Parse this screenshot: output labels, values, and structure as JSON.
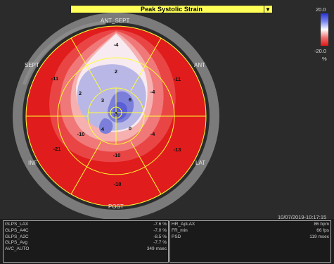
{
  "header": {
    "mode_label": "Peak Systolic Strain",
    "dropdown_arrow": "▼"
  },
  "scale": {
    "max": "20.0",
    "min": "-20.0",
    "unit": "%"
  },
  "wall_labels": {
    "ant_sept": "ANT_SEPT",
    "ant": "ANT",
    "lat": "LAT",
    "post": "POST",
    "inf": "INF",
    "sept": "SEPT"
  },
  "segments": {
    "outer_ant_sept": "-4",
    "outer_ant": "-11",
    "outer_lat": "-13",
    "outer_post": "-18",
    "outer_inf": "-21",
    "outer_sept": "-11",
    "mid_ant_sept": "2",
    "mid_ant": "-4",
    "mid_lat": "-4",
    "mid_post": "-10",
    "mid_inf": "-10",
    "mid_sept": "2",
    "apex_top": "6",
    "apex_right": "0",
    "apex_bottom": "4",
    "apex_left": "3",
    "apex_center": "3"
  },
  "timestamp": "10/07/2019-10:17:15",
  "left_panel": [
    {
      "k": "GLPS_LAX",
      "v": "-7.6 %"
    },
    {
      "k": "GLPS_A4C",
      "v": "-7.0 %"
    },
    {
      "k": "GLPS_A2C",
      "v": "-8.5 %"
    },
    {
      "k": "GLPS_Avg",
      "v": "-7.7 %"
    },
    {
      "k": "AVC_AUTO",
      "v": "349 msec"
    }
  ],
  "right_panel": [
    {
      "k": "HR_ApLAX",
      "v": "86 bpm"
    },
    {
      "k": "FR_min",
      "v": "66 fps"
    },
    {
      "k": "PSD",
      "v": "119 msec"
    }
  ],
  "colors": {
    "header_bg": "#ffff57",
    "ring": "#7b7b7b",
    "segment_line": "#ffff33",
    "strong_red": "#e82020",
    "blue": "#5a5fd6"
  }
}
